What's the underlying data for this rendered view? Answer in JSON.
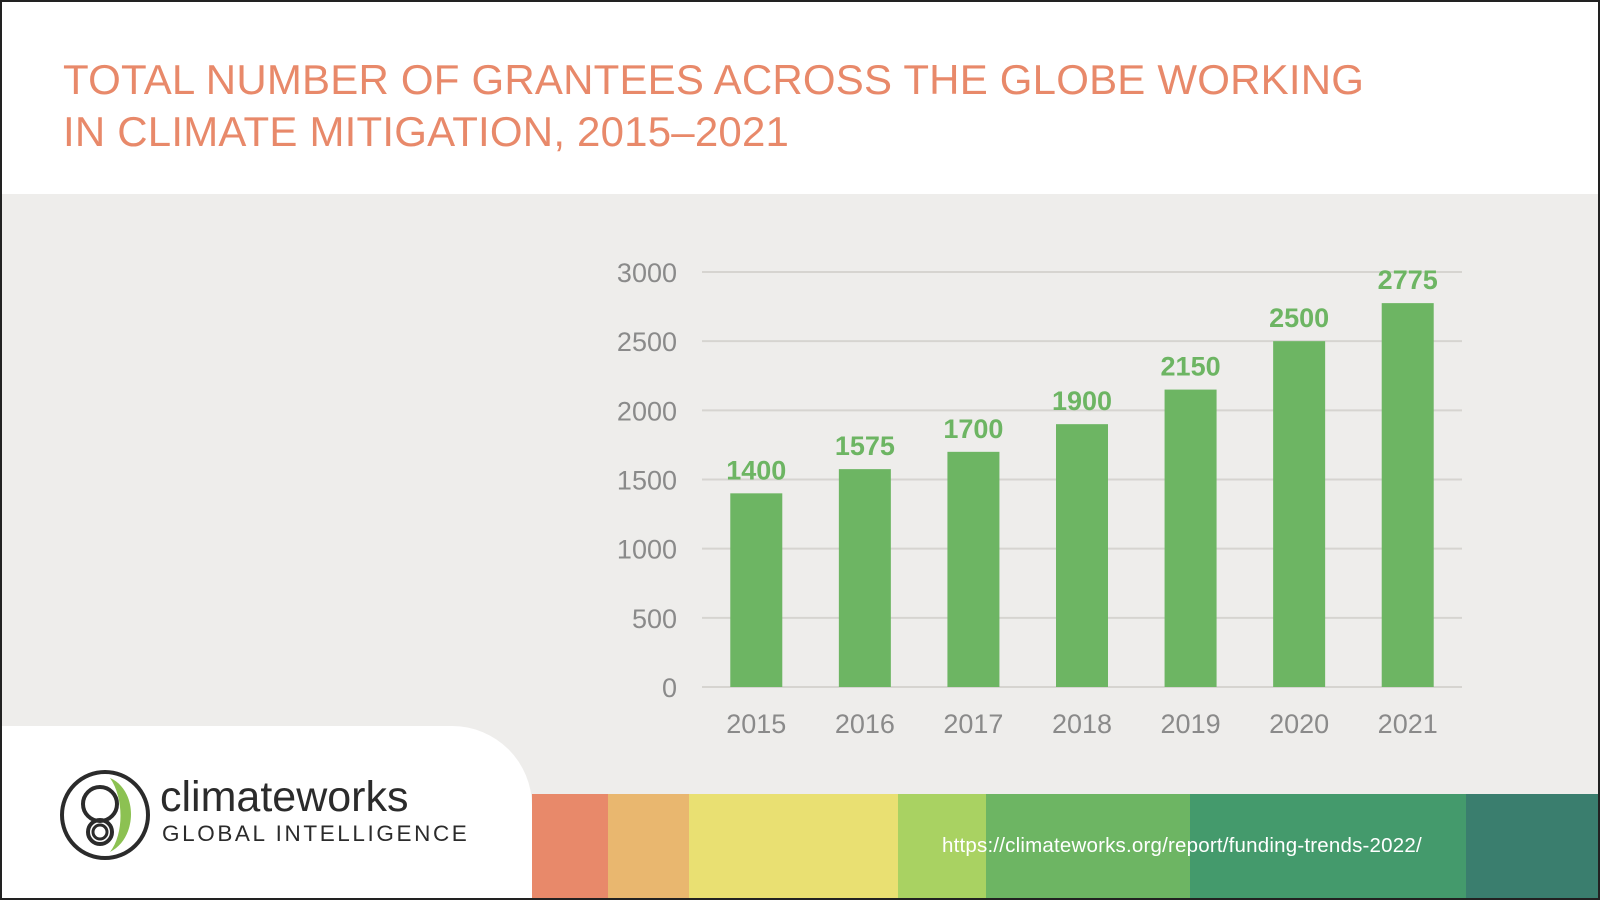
{
  "title_lines": [
    "TOTAL NUMBER OF GRANTEES ACROSS THE GLOBE WORKING",
    "IN CLIMATE MITIGATION, 2015–2021"
  ],
  "brand": {
    "name": "climateworks",
    "tagline": "GLOBAL INTELLIGENCE"
  },
  "footer": {
    "url": "https://climateworks.org/report/funding-trends-2022/"
  },
  "colors": {
    "title": "#e8896a",
    "bar": "#6db563",
    "panel_background": "#eeedeb",
    "stripe": [
      "#e8896a",
      "#e9b76f",
      "#e9e072",
      "#a9d262",
      "#6db563",
      "#449a6c",
      "#3a7e6e"
    ]
  },
  "chart_data": {
    "type": "bar",
    "categories": [
      "2015",
      "2016",
      "2017",
      "2018",
      "2019",
      "2020",
      "2021"
    ],
    "values": [
      1400,
      1575,
      1700,
      1900,
      2150,
      2500,
      2775
    ],
    "data_labels": [
      "1400",
      "1575",
      "1700",
      "1900",
      "2150",
      "2500",
      "2775"
    ],
    "title": "TOTAL NUMBER OF GRANTEES ACROSS THE GLOBE WORKING IN CLIMATE MITIGATION, 2015–2021",
    "xlabel": "",
    "ylabel": "",
    "ylim": [
      0,
      3000
    ],
    "yticks": [
      0,
      500,
      1000,
      1500,
      2000,
      2500,
      3000
    ],
    "ytick_labels": [
      "0",
      "500",
      "1000",
      "1500",
      "2000",
      "2500",
      "3000"
    ],
    "grid": true,
    "legend": "none"
  }
}
